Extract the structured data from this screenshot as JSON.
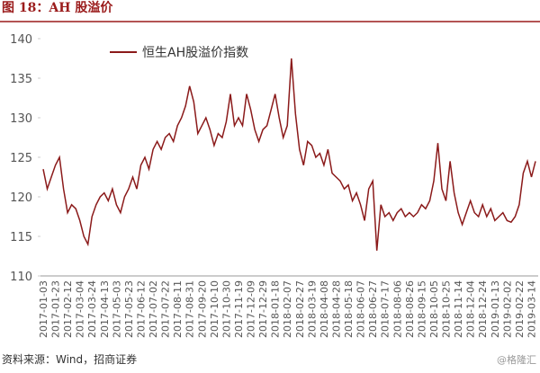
{
  "chart_data": {
    "type": "line",
    "title": "图 18：AH 股溢价",
    "source": "资料来源：Wind，招商证券",
    "watermark": "@格隆汇",
    "x": [
      "2017-01-03",
      null,
      null,
      "2017-01-23",
      null,
      null,
      "2017-02-12",
      null,
      null,
      "2017-03-04",
      null,
      null,
      "2017-03-24",
      null,
      null,
      "2017-04-13",
      null,
      null,
      "2017-05-03",
      null,
      null,
      "2017-05-23",
      null,
      null,
      "2017-06-12",
      null,
      null,
      "2017-07-02",
      null,
      null,
      "2017-07-22",
      null,
      null,
      "2017-08-11",
      null,
      null,
      "2017-08-31",
      null,
      null,
      "2017-09-20",
      null,
      null,
      "2017-10-10",
      null,
      null,
      "2017-10-30",
      null,
      null,
      "2017-11-19",
      null,
      null,
      "2017-12-09",
      null,
      null,
      "2017-12-29",
      null,
      null,
      "2018-01-18",
      null,
      null,
      "2018-02-07",
      null,
      null,
      "2018-02-27",
      null,
      null,
      "2018-03-19",
      null,
      null,
      "2018-04-08",
      null,
      null,
      "2018-04-28",
      null,
      null,
      "2018-05-18",
      null,
      null,
      "2018-06-07",
      null,
      null,
      "2018-06-27",
      null,
      null,
      "2018-07-17",
      null,
      null,
      "2018-08-06",
      null,
      null,
      "2018-08-26",
      null,
      null,
      "2018-09-15",
      null,
      null,
      "2018-10-05",
      null,
      null,
      "2018-10-25",
      null,
      null,
      "2018-11-14",
      null,
      null,
      "2018-12-04",
      null,
      null,
      "2018-12-24",
      null,
      null,
      "2019-01-13",
      null,
      null,
      "2019-02-02",
      null,
      null,
      "2019-02-22",
      null,
      null,
      "2019-03-14",
      null
    ],
    "series": [
      {
        "name": "恒生AH股溢价指数",
        "color": "#8b1a1a",
        "values": [
          123.5,
          121,
          122.5,
          124,
          125,
          121,
          118,
          119,
          118.5,
          117,
          115,
          114,
          117.5,
          119,
          120,
          120.5,
          119.5,
          121,
          119,
          118,
          120,
          121,
          122.5,
          121,
          124,
          125,
          123.5,
          126,
          127,
          126,
          127.5,
          128,
          127,
          129,
          130,
          131.5,
          134,
          132,
          128,
          129,
          130,
          128.5,
          126.5,
          128,
          127.5,
          129.5,
          133,
          129,
          130,
          129,
          133,
          131,
          128.5,
          127,
          128.5,
          129,
          131,
          133,
          130,
          127.5,
          129,
          137.5,
          130.5,
          126,
          124,
          127,
          126.5,
          125,
          125.5,
          124,
          126,
          123,
          122.5,
          122,
          121,
          121.5,
          119.5,
          120.5,
          119,
          117,
          121,
          122,
          113.2,
          119,
          117.5,
          118,
          117,
          118,
          118.5,
          117.5,
          118,
          117.5,
          118,
          119,
          118.5,
          119.5,
          122,
          126.8,
          121,
          119.5,
          124.5,
          120.5,
          118,
          116.5,
          118,
          119.5,
          118,
          117.5,
          119,
          117.5,
          118.5,
          117,
          117.5,
          118,
          117,
          116.8,
          117.5,
          119,
          123,
          124.5,
          122.5,
          124.5
        ]
      }
    ],
    "ylim": [
      110,
      140
    ],
    "yticks": [
      110,
      115,
      120,
      125,
      130,
      135,
      140
    ]
  }
}
